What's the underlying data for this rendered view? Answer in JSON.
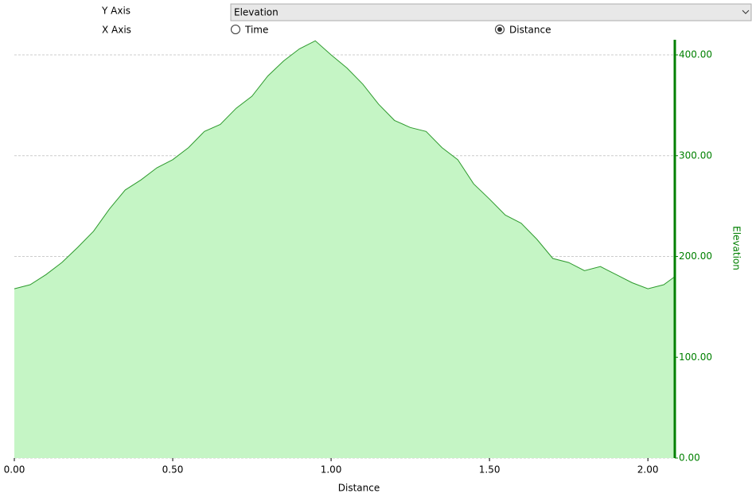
{
  "controls": {
    "y_axis_label": "Y Axis",
    "y_axis_value": "Elevation",
    "x_axis_label": "X Axis",
    "x_options": [
      {
        "label": "Time",
        "selected": false
      },
      {
        "label": "Distance",
        "selected": true
      }
    ]
  },
  "chart_data": {
    "type": "area",
    "x_label": "Distance",
    "y_label": "Elevation",
    "x": [
      0,
      0.05,
      0.1,
      0.15,
      0.2,
      0.25,
      0.3,
      0.35,
      0.4,
      0.45,
      0.5,
      0.55,
      0.6,
      0.65,
      0.7,
      0.75,
      0.8,
      0.85,
      0.9,
      0.95,
      1.0,
      1.05,
      1.1,
      1.15,
      1.2,
      1.25,
      1.3,
      1.35,
      1.4,
      1.45,
      1.5,
      1.55,
      1.6,
      1.65,
      1.7,
      1.75,
      1.8,
      1.85,
      1.9,
      1.95,
      2.0,
      2.05,
      2.085
    ],
    "series": [
      {
        "name": "Elevation",
        "line_color": "#2e9a2e",
        "fill_color": "#c5f5c5",
        "values": [
          168,
          172,
          182,
          194,
          209,
          225,
          247,
          266,
          276,
          288,
          296,
          308,
          324,
          331,
          347,
          359,
          379,
          394,
          406,
          414,
          400,
          387,
          371,
          351,
          335,
          328,
          324,
          308,
          296,
          272,
          257,
          241,
          233,
          217,
          198,
          194,
          186,
          190,
          182,
          174,
          168,
          172,
          180
        ]
      }
    ],
    "xlim": [
      0,
      2.085
    ],
    "ylim": [
      0,
      415
    ],
    "xticks": [
      {
        "value": 0,
        "label": "0.00"
      },
      {
        "value": 0.5,
        "label": "0.50"
      },
      {
        "value": 1,
        "label": "1.00"
      },
      {
        "value": 1.5,
        "label": "1.50"
      },
      {
        "value": 2,
        "label": "2.00"
      }
    ],
    "yticks": [
      {
        "value": 0,
        "label": "0.00"
      },
      {
        "value": 100,
        "label": "100.00"
      },
      {
        "value": 200,
        "label": "200.00"
      },
      {
        "value": 300,
        "label": "300.00"
      },
      {
        "value": 400,
        "label": "400.00"
      }
    ],
    "grid": true,
    "axis_color": "#008000"
  }
}
